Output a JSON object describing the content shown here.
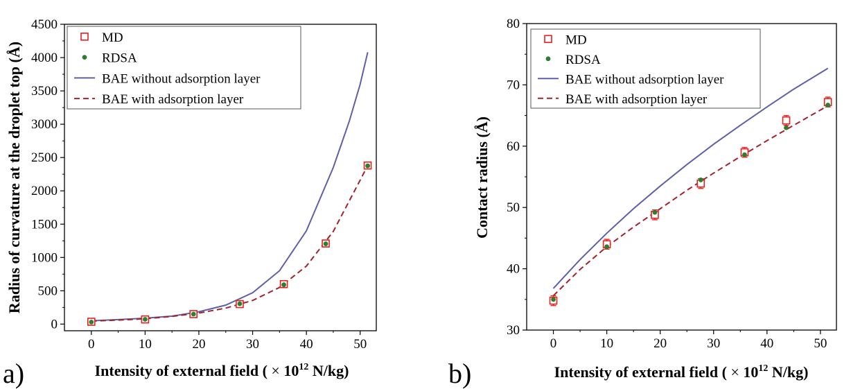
{
  "charts": [
    {
      "panel_label": "a)",
      "chart_data": {
        "type": "line",
        "x": [
          0,
          10,
          19,
          27.6,
          35.8,
          43.6,
          51.4
        ],
        "xlim": [
          -5,
          53
        ],
        "ylim": [
          -100,
          4500
        ],
        "xticks": [
          0,
          10,
          20,
          30,
          40,
          50
        ],
        "yticks": [
          0,
          500,
          1000,
          1500,
          2000,
          2500,
          3000,
          3500,
          4000,
          4500
        ],
        "xlabel_main": "Intensity of external field ( ",
        "xlabel_times": "×",
        "xlabel_base": " 10",
        "xlabel_exp": "12",
        "xlabel_unit": " N/kg)",
        "ylabel": "Radius of curvature at the droplet top (Å)",
        "legend_position": "top-left",
        "series": [
          {
            "name": "MD",
            "style": "open-square",
            "color": "#e8201c",
            "values": [
              35,
              70,
              150,
              300,
              600,
              1210,
              2380
            ]
          },
          {
            "name": "RDSA",
            "style": "dot",
            "color": "#2e7d32",
            "values": [
              30,
              72,
              150,
              305,
              590,
              1205,
              2375
            ]
          },
          {
            "name": "BAE without adsorption layer",
            "style": "solid",
            "color": "#5d60a8",
            "curve": {
              "x": [
                0,
                5,
                10,
                15,
                20,
                25,
                30,
                35,
                40,
                45,
                48,
                50,
                51.4
              ],
              "y": [
                50,
                68,
                88,
                120,
                185,
                285,
                470,
                800,
                1400,
                2350,
                3050,
                3600,
                4080
              ]
            }
          },
          {
            "name": "BAE with adsorption layer",
            "style": "dashed",
            "color": "#a3212a",
            "curve": {
              "x": [
                0,
                5,
                10,
                15,
                20,
                25,
                30,
                35,
                40,
                45,
                50,
                51.4
              ],
              "y": [
                45,
                60,
                80,
                115,
                165,
                240,
                355,
                550,
                870,
                1390,
                2160,
                2380
              ]
            }
          }
        ]
      }
    },
    {
      "panel_label": "b)",
      "chart_data": {
        "type": "line",
        "x": [
          0,
          10,
          19,
          27.6,
          35.8,
          43.6,
          51.4
        ],
        "xlim": [
          -5,
          53
        ],
        "ylim": [
          30,
          80
        ],
        "xticks": [
          0,
          10,
          20,
          30,
          40,
          50
        ],
        "yticks": [
          30,
          40,
          50,
          60,
          70,
          80
        ],
        "xlabel_main": "Intensity of external field ( ",
        "xlabel_times": "×",
        "xlabel_base": " 10",
        "xlabel_exp": "12",
        "xlabel_unit": " N/kg)",
        "ylabel": "Contact radius (Å)",
        "legend_position": "top-left",
        "series": [
          {
            "name": "MD",
            "style": "open-square",
            "color": "#e8201c",
            "values": [
              34.8,
              44.0,
              48.8,
              53.9,
              59.0,
              64.2,
              67.2
            ],
            "error": [
              0.8,
              0.8,
              0.8,
              0.8,
              0.8,
              0.8,
              0.8
            ]
          },
          {
            "name": "RDSA",
            "style": "dot",
            "color": "#2e7d32",
            "values": [
              35.0,
              43.6,
              49.2,
              54.5,
              58.6,
              63.0,
              66.7
            ]
          },
          {
            "name": "BAE without adsorption layer",
            "style": "solid",
            "color": "#5d60a8",
            "curve": {
              "x": [
                0,
                5,
                10,
                15,
                20,
                25,
                30,
                35,
                40,
                45,
                51.4
              ],
              "y": [
                36.8,
                41.5,
                45.8,
                49.8,
                53.5,
                57.0,
                60.3,
                63.4,
                66.4,
                69.3,
                72.7
              ]
            }
          },
          {
            "name": "BAE with adsorption layer",
            "style": "dashed",
            "color": "#a3212a",
            "curve": {
              "x": [
                0,
                5,
                10,
                15,
                20,
                25,
                30,
                35,
                40,
                45,
                51.4
              ],
              "y": [
                35.6,
                39.9,
                43.6,
                46.8,
                49.8,
                52.8,
                55.6,
                58.3,
                60.9,
                63.4,
                66.6
              ]
            }
          }
        ]
      }
    }
  ]
}
